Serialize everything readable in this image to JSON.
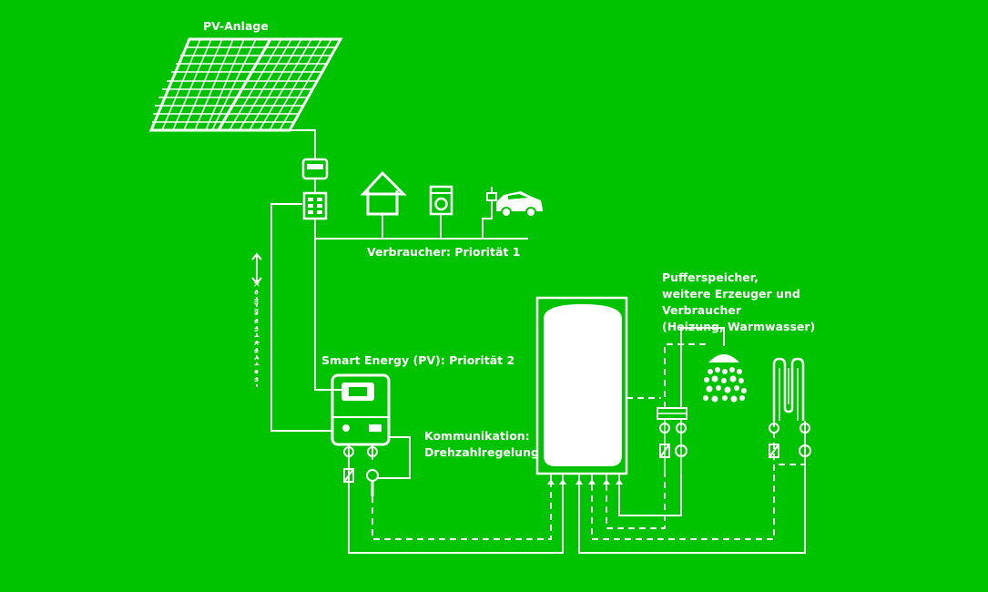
{
  "labels": {
    "pv_anlage": "PV-Anlage",
    "verbraucher_prio1": "Verbraucher: Priorität 1",
    "smart_energy_prio2": "Smart Energy (PV): Priorität 2",
    "kommunikation_line1": "Kommunikation:",
    "kommunikation_line2": "Drehzahlregelung",
    "puffer_line1": "Pufferspeicher,",
    "puffer_line2": "weitere Erzeuger und",
    "puffer_line3": "Verbraucher",
    "puffer_line4": "(Heizung, Warmwasser)",
    "vertical_kommunikation": "Kommunikation"
  },
  "icons": {
    "solar": "solar-panel-icon",
    "meter": "meter-icon",
    "inverter": "inverter-icon",
    "house": "house-icon",
    "washer": "washing-machine-icon",
    "car": "electric-car-icon",
    "controller": "smart-energy-controller-icon",
    "tank": "buffer-tank-icon",
    "shower": "shower-icon",
    "radiator": "floor-heating-icon"
  },
  "colors": {
    "background": "#00c300",
    "stroke": "#ffffff"
  }
}
